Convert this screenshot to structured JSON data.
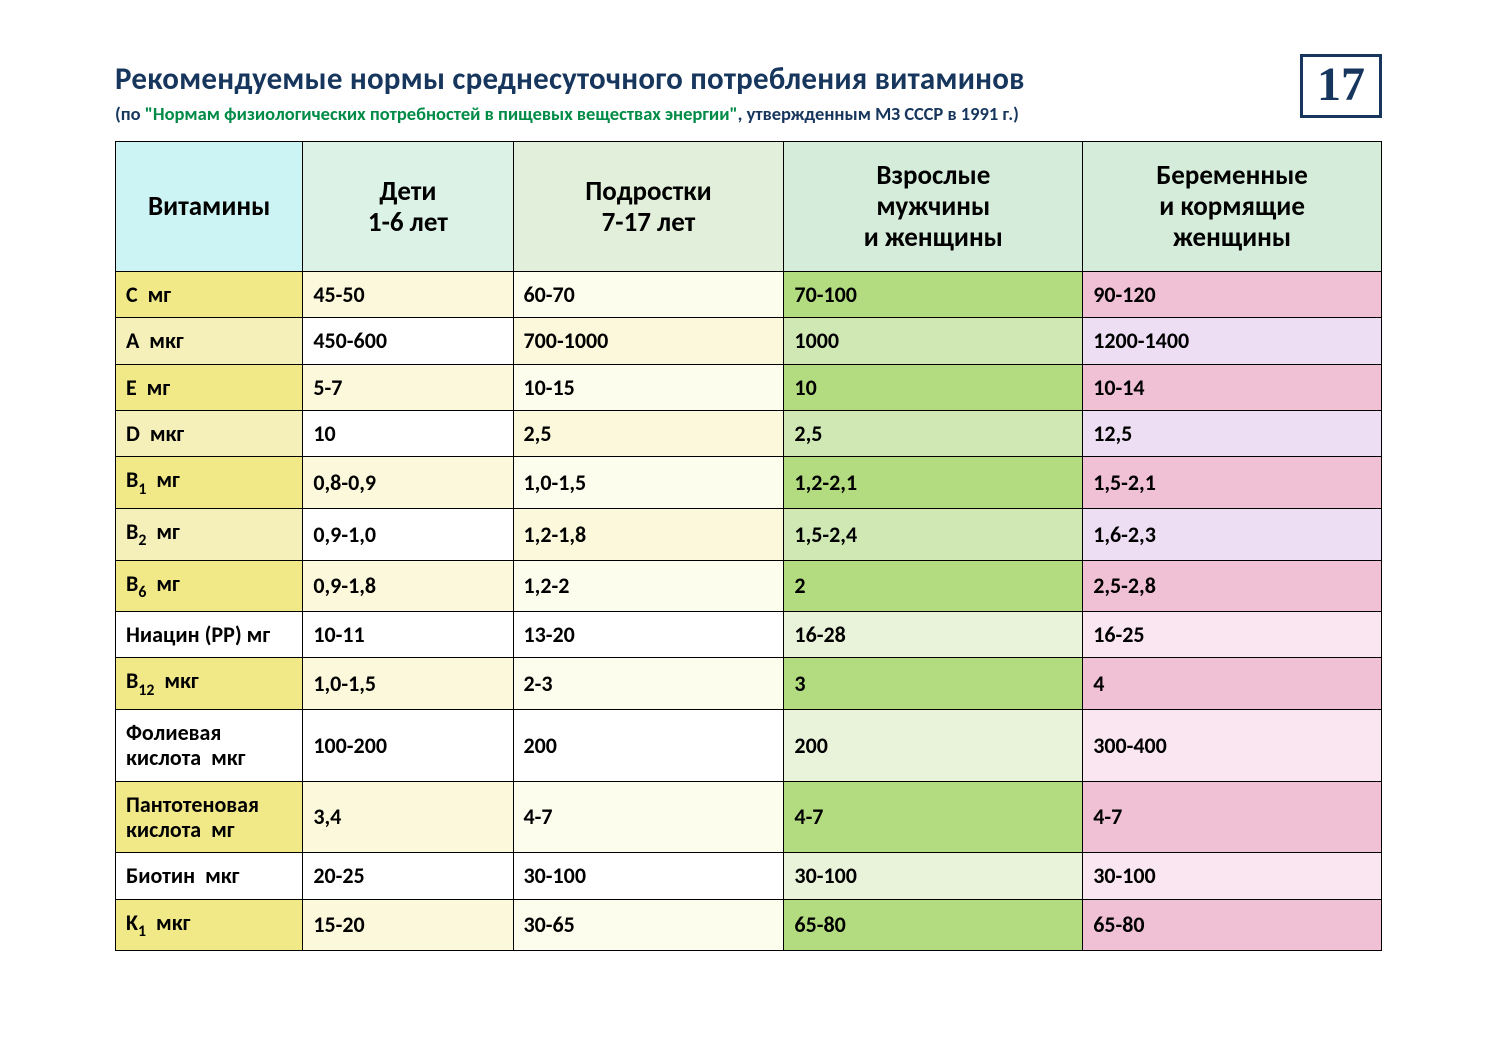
{
  "pageNumber": "17",
  "title": "Рекомендуемые нормы среднесуточного потребления витаминов",
  "subtitle_pre": "(по ",
  "subtitle_green": "\"Нормам физиологических потребностей в пищевых веществах энергии\"",
  "subtitle_post": ", утвержденным МЗ СССР в 1991 г.)",
  "colors": {
    "th_c0": "#cdf4f4",
    "th_c1": "#dcf2e6",
    "th_c2": "#e2efda",
    "th_c3": "#d5ecda",
    "th_c4": "#d5ecda",
    "yellow_strong": "#f1e988",
    "yellow_soft": "#f5f0b9",
    "cream": "#fbf8db",
    "ivory": "#fdfdee",
    "white": "#ffffff",
    "green_light": "#e9f3da",
    "green_med": "#cfe8b4",
    "green_strong": "#b3db7f",
    "pink_light": "#fae6f0",
    "pink_med": "#f5d2e2",
    "pink_strong": "#f0c0d4",
    "mauve": "#eddef3"
  },
  "columns": [
    "Витамины",
    "Дети\n1-6 лет",
    "Подростки\n7-17 лет",
    "Взрослые\nмужчины\nи женщины",
    "Беременные\nи кормящие\nженщины"
  ],
  "rows": [
    {
      "label_html": "C&nbsp;&nbsp;мг",
      "cells": [
        "45-50",
        "60-70",
        "70-100",
        "90-120"
      ],
      "bg": [
        "yellow_strong",
        "cream",
        "ivory",
        "green_strong",
        "pink_strong"
      ]
    },
    {
      "label_html": "A&nbsp;&nbsp;мкг",
      "cells": [
        "450-600",
        "700-1000",
        "1000",
        "1200-1400"
      ],
      "bg": [
        "yellow_soft",
        "white",
        "cream",
        "green_med",
        "mauve"
      ]
    },
    {
      "label_html": "E&nbsp;&nbsp;мг",
      "cells": [
        "5-7",
        "10-15",
        "10",
        "10-14"
      ],
      "bg": [
        "yellow_strong",
        "cream",
        "ivory",
        "green_strong",
        "pink_strong"
      ]
    },
    {
      "label_html": "D&nbsp;&nbsp;мкг",
      "cells": [
        "10",
        "2,5",
        "2,5",
        "12,5"
      ],
      "bg": [
        "yellow_soft",
        "white",
        "cream",
        "green_med",
        "mauve"
      ]
    },
    {
      "label_html": "B<span class=\"sub\">1</span>&nbsp;&nbsp;мг",
      "cells": [
        "0,8-0,9",
        "1,0-1,5",
        "1,2-2,1",
        "1,5-2,1"
      ],
      "bg": [
        "yellow_strong",
        "cream",
        "ivory",
        "green_strong",
        "pink_strong"
      ]
    },
    {
      "label_html": "B<span class=\"sub\">2</span>&nbsp;&nbsp;мг",
      "cells": [
        "0,9-1,0",
        "1,2-1,8",
        "1,5-2,4",
        "1,6-2,3"
      ],
      "bg": [
        "yellow_soft",
        "white",
        "cream",
        "green_med",
        "mauve"
      ]
    },
    {
      "label_html": "B<span class=\"sub\">6</span>&nbsp;&nbsp;мг",
      "cells": [
        "0,9-1,8",
        "1,2-2",
        "2",
        "2,5-2,8"
      ],
      "bg": [
        "yellow_strong",
        "cream",
        "ivory",
        "green_strong",
        "pink_strong"
      ]
    },
    {
      "label_html": "Ниацин (РР) мг",
      "cells": [
        "10-11",
        "13-20",
        "16-28",
        "16-25"
      ],
      "bg": [
        "white",
        "white",
        "white",
        "green_light",
        "pink_light"
      ]
    },
    {
      "label_html": "B<span class=\"sub\">12</span>&nbsp;&nbsp;мкг",
      "cells": [
        "1,0-1,5",
        "2-3",
        "3",
        "4"
      ],
      "bg": [
        "yellow_strong",
        "cream",
        "ivory",
        "green_strong",
        "pink_strong"
      ]
    },
    {
      "label_html": "Фолиевая<br>кислота&nbsp;&nbsp;мкг",
      "cells": [
        "100-200",
        "200",
        "200",
        "300-400"
      ],
      "bg": [
        "white",
        "white",
        "white",
        "green_light",
        "pink_light"
      ]
    },
    {
      "label_html": "Пантотеновая<br>кислота&nbsp;&nbsp;мг",
      "cells": [
        "3,4",
        "4-7",
        "4-7",
        "4-7"
      ],
      "bg": [
        "yellow_strong",
        "cream",
        "ivory",
        "green_strong",
        "pink_strong"
      ]
    },
    {
      "label_html": "Биотин&nbsp;&nbsp;мкг",
      "cells": [
        "20-25",
        "30-100",
        "30-100",
        "30-100"
      ],
      "bg": [
        "white",
        "white",
        "white",
        "green_light",
        "pink_light"
      ]
    },
    {
      "label_html": "K<span class=\"sub\">1</span>&nbsp;&nbsp;мкг",
      "cells": [
        "15-20",
        "30-65",
        "65-80",
        "65-80"
      ],
      "bg": [
        "yellow_strong",
        "cream",
        "ivory",
        "green_strong",
        "pink_strong"
      ]
    }
  ]
}
